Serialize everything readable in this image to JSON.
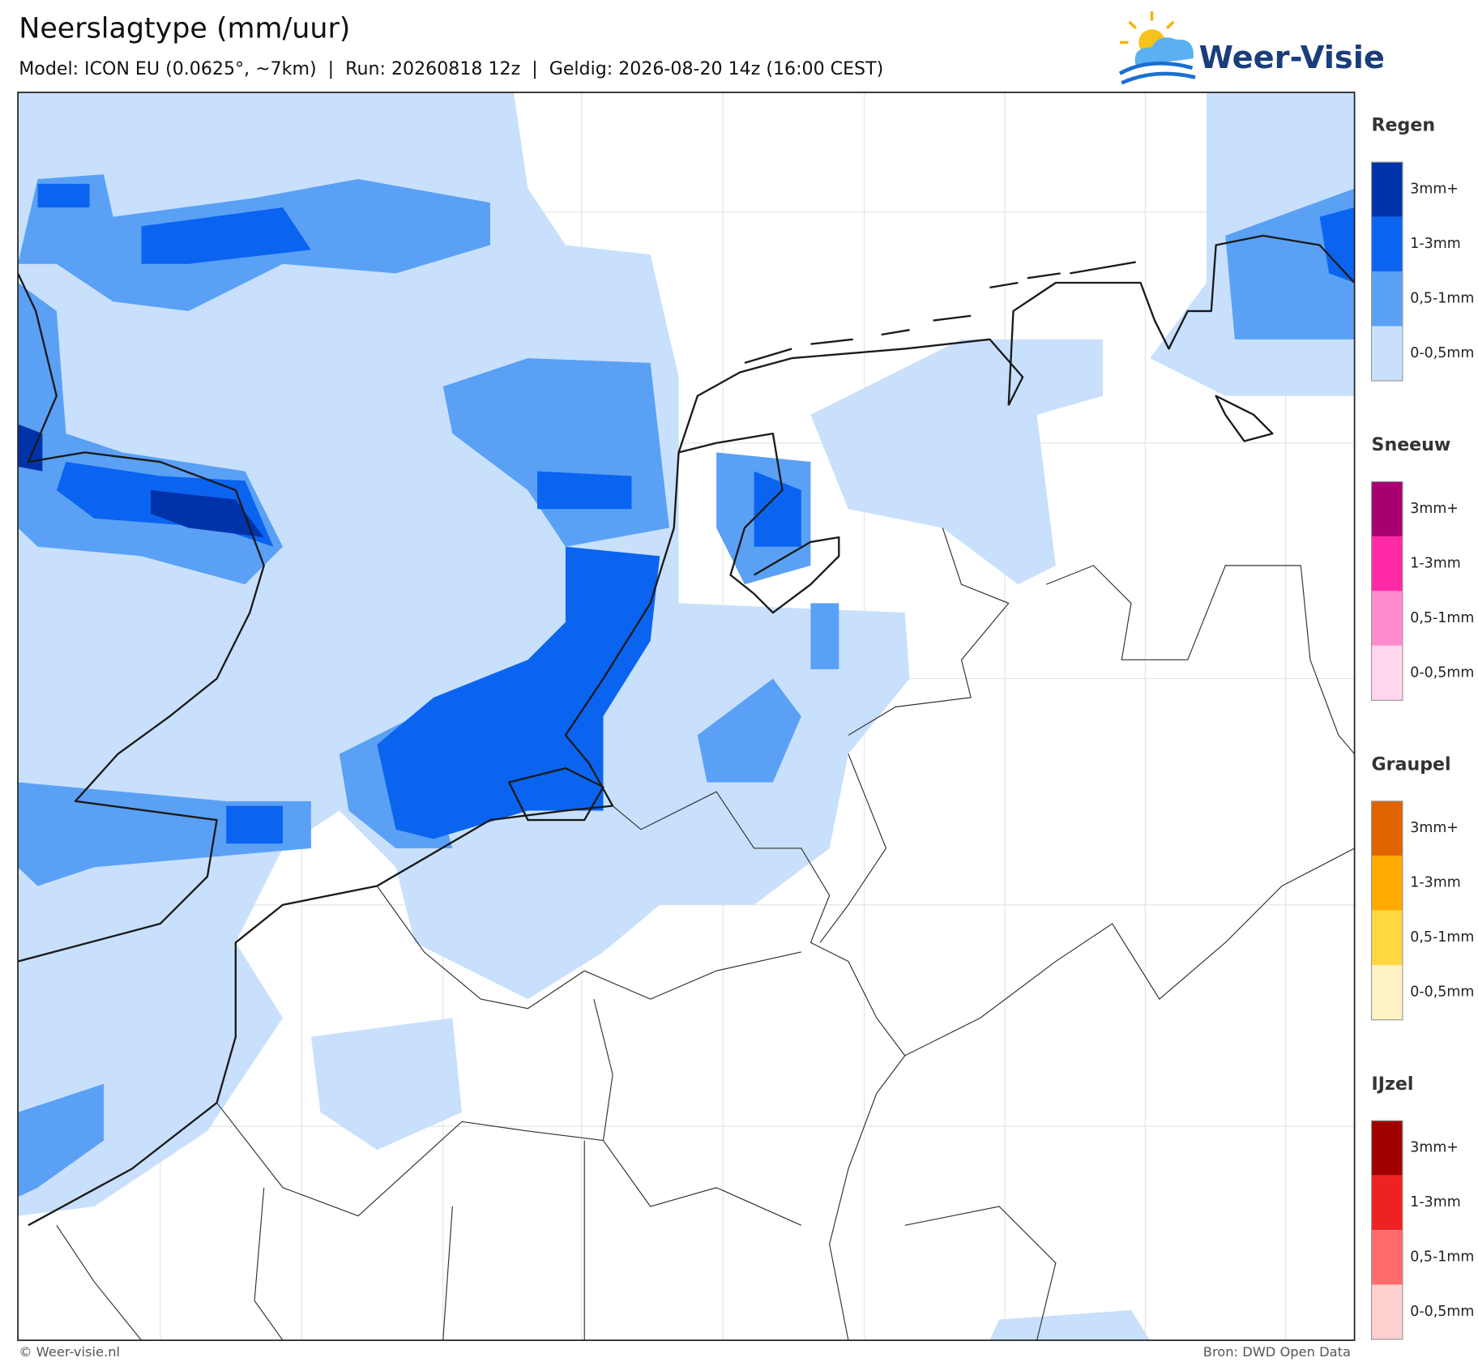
{
  "header": {
    "title": "Neerslagtype (mm/uur)",
    "subtitle": "Model: ICON EU (0.0625°, ~7km)  |  Run: 20260818 12z  |  Geldig: 2026-08-20 14z (16:00 CEST)"
  },
  "logo": {
    "text": "Weer-Visie"
  },
  "legend": [
    {
      "title": "Regen",
      "items": [
        {
          "label": "3mm+",
          "color": "#0033aa"
        },
        {
          "label": "1-3mm",
          "color": "#0a64f0"
        },
        {
          "label": "0,5-1mm",
          "color": "#5aa0f5"
        },
        {
          "label": "0-0,5mm",
          "color": "#c8e0fc"
        }
      ]
    },
    {
      "title": "Sneeuw",
      "items": [
        {
          "label": "3mm+",
          "color": "#a8006e"
        },
        {
          "label": "1-3mm",
          "color": "#ff2aa6"
        },
        {
          "label": "0,5-1mm",
          "color": "#ff8ccd"
        },
        {
          "label": "0-0,5mm",
          "color": "#ffd6ee"
        }
      ]
    },
    {
      "title": "Graupel",
      "items": [
        {
          "label": "3mm+",
          "color": "#e06400"
        },
        {
          "label": "1-3mm",
          "color": "#ffaa00"
        },
        {
          "label": "0,5-1mm",
          "color": "#ffd740"
        },
        {
          "label": "0-0,5mm",
          "color": "#fff2c4"
        }
      ]
    },
    {
      "title": "IJzel",
      "items": [
        {
          "label": "3mm+",
          "color": "#a00000"
        },
        {
          "label": "1-3mm",
          "color": "#ee2222"
        },
        {
          "label": "0,5-1mm",
          "color": "#ff6b6b"
        },
        {
          "label": "0-0,5mm",
          "color": "#ffd0d0"
        }
      ]
    }
  ],
  "footer": {
    "left": "© Weer-visie.nl",
    "right": "Bron: DWD Open Data"
  }
}
